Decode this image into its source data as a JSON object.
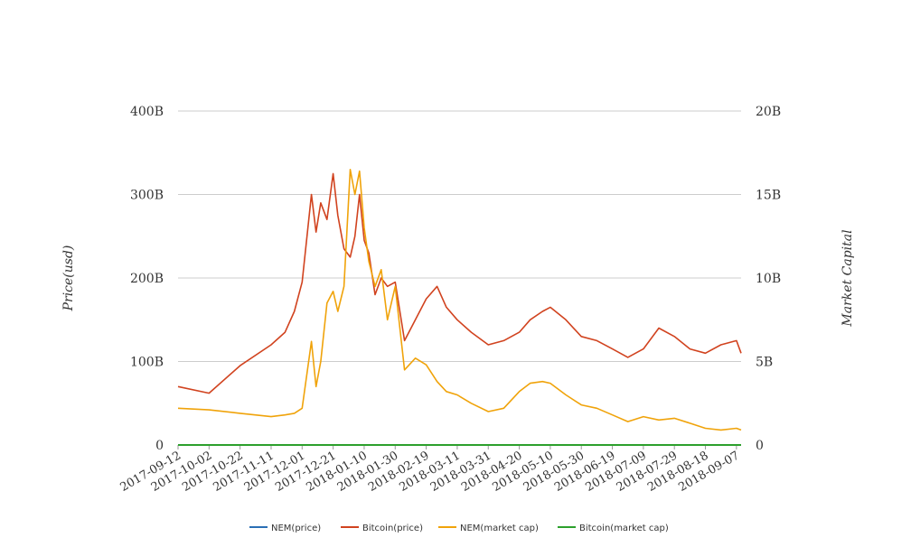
{
  "chart_data": {
    "type": "line",
    "y_left_label": "Price(usd)",
    "y_right_label": "Market Capital",
    "y_left_ticks": [
      "0",
      "100B",
      "200B",
      "300B",
      "400B"
    ],
    "y_right_ticks": [
      "0",
      "5B",
      "10B",
      "15B",
      "20B"
    ],
    "y_left_range": [
      0,
      400000000000
    ],
    "y_right_range": [
      0,
      20000000000
    ],
    "x_tick_labels": [
      "2017-09-12",
      "2017-10-02",
      "2017-10-22",
      "2017-11-11",
      "2017-12-01",
      "2017-12-21",
      "2018-01-10",
      "2018-01-30",
      "2018-02-19",
      "2018-03-11",
      "2018-03-31",
      "2018-04-20",
      "2018-05-10",
      "2018-05-30",
      "2018-06-19",
      "2018-07-09",
      "2018-07-29",
      "2018-08-18",
      "2018-09-07"
    ],
    "x": [
      "2017-09-12",
      "2017-10-02",
      "2017-10-22",
      "2017-11-11",
      "2017-11-20",
      "2017-11-26",
      "2017-12-01",
      "2017-12-07",
      "2017-12-10",
      "2017-12-13",
      "2017-12-17",
      "2017-12-21",
      "2017-12-24",
      "2017-12-28",
      "2018-01-01",
      "2018-01-04",
      "2018-01-07",
      "2018-01-10",
      "2018-01-13",
      "2018-01-17",
      "2018-01-21",
      "2018-01-25",
      "2018-01-30",
      "2018-02-05",
      "2018-02-12",
      "2018-02-19",
      "2018-02-26",
      "2018-03-04",
      "2018-03-11",
      "2018-03-20",
      "2018-03-31",
      "2018-04-10",
      "2018-04-20",
      "2018-04-27",
      "2018-05-05",
      "2018-05-10",
      "2018-05-20",
      "2018-05-30",
      "2018-06-09",
      "2018-06-19",
      "2018-06-29",
      "2018-07-09",
      "2018-07-19",
      "2018-07-29",
      "2018-08-08",
      "2018-08-18",
      "2018-08-28",
      "2018-09-07",
      "2018-09-10"
    ],
    "series": [
      {
        "name": "NEM(price)",
        "axis": "left",
        "color": "#2a6fb5",
        "values": [
          0.2,
          0.2,
          0.2,
          0.2,
          0.2,
          0.2,
          0.3,
          0.4,
          0.5,
          0.6,
          0.7,
          0.8,
          0.9,
          1.0,
          1.4,
          1.8,
          1.6,
          1.3,
          1.2,
          1.0,
          0.9,
          0.8,
          0.8,
          0.6,
          0.5,
          0.5,
          0.4,
          0.4,
          0.3,
          0.3,
          0.2,
          0.2,
          0.3,
          0.4,
          0.4,
          0.4,
          0.3,
          0.3,
          0.2,
          0.2,
          0.2,
          0.2,
          0.2,
          0.2,
          0.1,
          0.1,
          0.1,
          0.1,
          0.1
        ]
      },
      {
        "name": "Bitcoin(price)",
        "axis": "left",
        "color": "#d1431f",
        "values": [
          70000000000,
          62000000000,
          95000000000,
          120000000000,
          135000000000,
          160000000000,
          195000000000,
          300000000000,
          255000000000,
          290000000000,
          270000000000,
          325000000000,
          275000000000,
          235000000000,
          225000000000,
          250000000000,
          300000000000,
          245000000000,
          230000000000,
          180000000000,
          200000000000,
          190000000000,
          195000000000,
          125000000000,
          150000000000,
          175000000000,
          190000000000,
          165000000000,
          150000000000,
          135000000000,
          120000000000,
          125000000000,
          135000000000,
          150000000000,
          160000000000,
          165000000000,
          150000000000,
          130000000000,
          125000000000,
          115000000000,
          105000000000,
          115000000000,
          140000000000,
          130000000000,
          115000000000,
          110000000000,
          120000000000,
          125000000000,
          110000000000
        ]
      },
      {
        "name": "NEM(market cap)",
        "axis": "right",
        "color": "#f0a30a",
        "values": [
          2200000000,
          2100000000,
          1900000000,
          1700000000,
          1800000000,
          1900000000,
          2200000000,
          6200000000,
          3500000000,
          5000000000,
          8500000000,
          9200000000,
          8000000000,
          9500000000,
          16500000000,
          15000000000,
          16400000000,
          13000000000,
          11000000000,
          9500000000,
          10500000000,
          7500000000,
          9500000000,
          4500000000,
          5200000000,
          4800000000,
          3800000000,
          3200000000,
          3000000000,
          2500000000,
          2000000000,
          2200000000,
          3200000000,
          3700000000,
          3800000000,
          3700000000,
          3000000000,
          2400000000,
          2200000000,
          1800000000,
          1400000000,
          1700000000,
          1500000000,
          1600000000,
          1300000000,
          1000000000,
          900000000,
          1000000000,
          900000000
        ]
      },
      {
        "name": "Bitcoin(market cap)",
        "axis": "right",
        "color": "#2ca02c",
        "values": [
          0.2,
          0.2,
          0.2,
          0.2,
          0.2,
          0.2,
          0.3,
          0.4,
          0.5,
          0.6,
          0.7,
          0.8,
          0.9,
          1.0,
          1.4,
          1.8,
          1.6,
          1.3,
          1.2,
          1.0,
          0.9,
          0.8,
          0.8,
          0.6,
          0.5,
          0.5,
          0.4,
          0.4,
          0.3,
          0.3,
          0.2,
          0.2,
          0.3,
          0.4,
          0.4,
          0.4,
          0.3,
          0.3,
          0.2,
          0.2,
          0.2,
          0.2,
          0.2,
          0.2,
          0.1,
          0.1,
          0.1,
          0.1,
          0.1
        ]
      }
    ],
    "grid": "horizontal",
    "legend_position": "bottom"
  }
}
